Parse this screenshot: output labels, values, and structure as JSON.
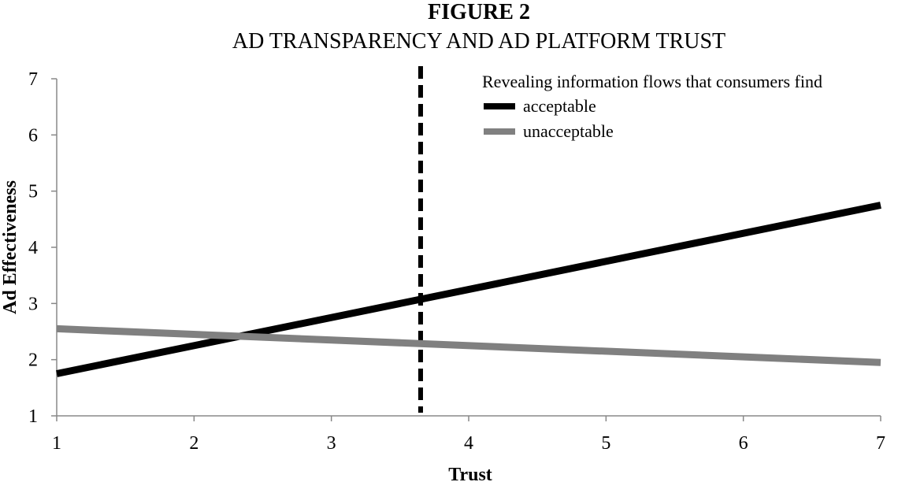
{
  "figure_label": "FIGURE 2",
  "chart_data": {
    "type": "line",
    "title": "AD TRANSPARENCY AND AD PLATFORM TRUST",
    "xlabel": "Trust",
    "ylabel": "Ad Effectiveness",
    "xlim": [
      1,
      7
    ],
    "ylim": [
      1,
      7
    ],
    "x_ticks": [
      1,
      2,
      3,
      4,
      5,
      6,
      7
    ],
    "y_ticks": [
      1,
      2,
      3,
      4,
      5,
      6,
      7
    ],
    "legend_title": "Revealing information flows that consumers find",
    "legend_position": "top-right",
    "grid": false,
    "series": [
      {
        "name": "acceptable",
        "color": "#000000",
        "x": [
          1,
          7
        ],
        "y": [
          1.75,
          4.75
        ]
      },
      {
        "name": "unacceptable",
        "color": "#808080",
        "x": [
          1,
          7
        ],
        "y": [
          2.55,
          1.95
        ]
      }
    ],
    "reference_line": {
      "orientation": "vertical",
      "x": 3.65,
      "style": "dashed",
      "color": "#000000"
    }
  }
}
